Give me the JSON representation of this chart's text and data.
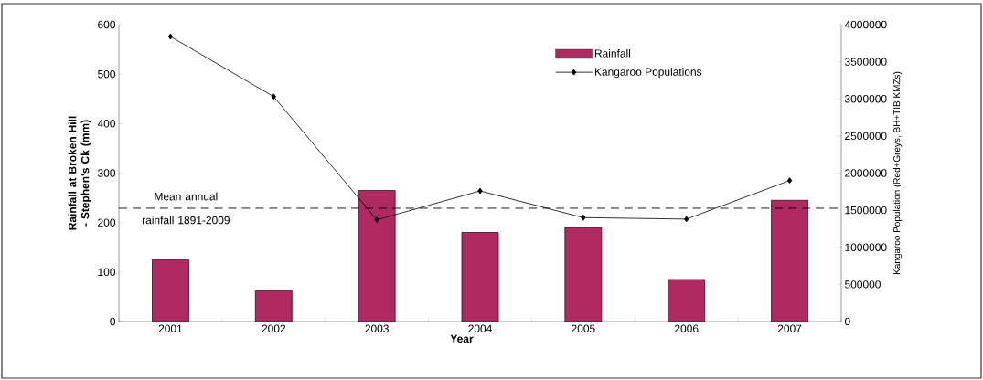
{
  "chart_data": {
    "type": "bar",
    "xlabel": "Year",
    "ylabel": "Rainfall at Broken Hill - Stephen's Ck (mm)",
    "y2label": "Kangaroo Population (Red+Greys, BH+TIB KMZs)",
    "categories": [
      "2001",
      "2002",
      "2003",
      "2004",
      "2005",
      "2006",
      "2007"
    ],
    "series": [
      {
        "name": "Rainfall",
        "type": "bar",
        "color": "#b02a62",
        "values": [
          125,
          62,
          265,
          180,
          190,
          85,
          245
        ]
      },
      {
        "name": "Kangaroo Populations",
        "type": "line",
        "axis": "y2",
        "color": "#000000",
        "marker": "diamond",
        "values": [
          3840000,
          3030000,
          1370000,
          1760000,
          1400000,
          1380000,
          1900000
        ]
      }
    ],
    "ylim": [
      0,
      600
    ],
    "yticks": [
      0,
      100,
      200,
      300,
      400,
      500,
      600
    ],
    "y2lim": [
      0,
      4000000
    ],
    "y2ticks": [
      0,
      500000,
      1000000,
      1500000,
      2000000,
      2500000,
      3000000,
      3500000,
      4000000
    ],
    "ref_lines": [
      {
        "axis": "y",
        "value": 229,
        "label": "Mean annual rainfall 1891-2009",
        "line_style": "dashed",
        "color": "#000000"
      }
    ],
    "legend": "top right",
    "grid": false
  }
}
